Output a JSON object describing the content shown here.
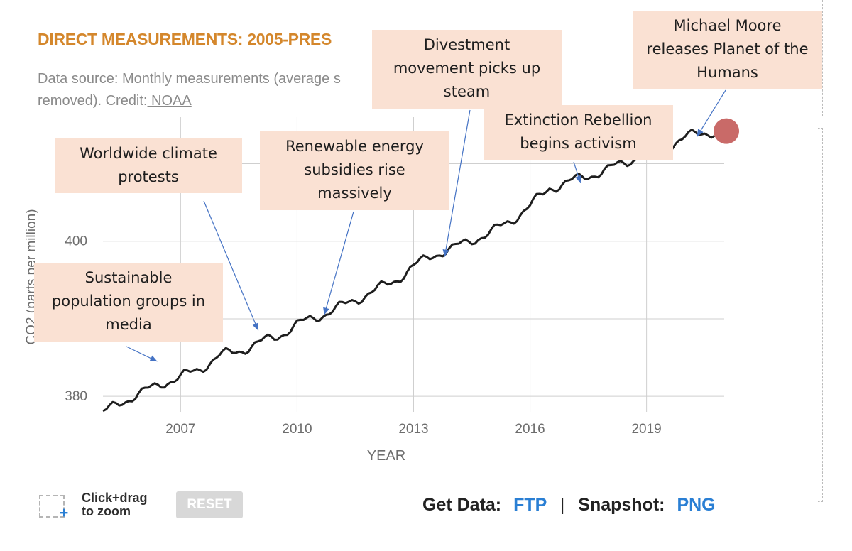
{
  "header": {
    "title": "DIRECT MEASUREMENTS: 2005-PRES",
    "subtitle_line1": "Data source: Monthly measurements (average s",
    "subtitle_line2_prefix": "removed). Credit:",
    "credit_link": " NOAA"
  },
  "chart_data": {
    "type": "line",
    "xlabel": "YEAR",
    "ylabel": "CO2 (parts per million)",
    "x_ticks": [
      "2007",
      "2010",
      "2013",
      "2016",
      "2019"
    ],
    "y_ticks": [
      "380",
      "400"
    ],
    "xlim": [
      2005,
      2021
    ],
    "ylim": [
      378,
      416
    ],
    "grid": true,
    "line_color": "#1e1e1e",
    "marker_color": "#c0504d",
    "series": [
      {
        "x": [
          2005.0,
          2005.5,
          2006.0,
          2006.5,
          2007.0,
          2007.5,
          2008.0,
          2008.5,
          2009.0,
          2009.5,
          2010.0,
          2010.5,
          2011.0,
          2011.5,
          2012.0,
          2012.5,
          2013.0,
          2013.5,
          2014.0,
          2014.5,
          2015.0,
          2015.5,
          2016.0,
          2016.5,
          2017.0,
          2017.5,
          2018.0,
          2018.5,
          2019.0,
          2019.5,
          2020.0,
          2020.5,
          2020.8
        ],
        "y": [
          377.8,
          379.4,
          380.4,
          381.7,
          382.4,
          383.6,
          385.2,
          385.9,
          386.8,
          387.8,
          389.2,
          390.3,
          391.2,
          392.5,
          393.6,
          394.9,
          396.7,
          398.3,
          399.0,
          400.2,
          401.1,
          402.7,
          404.5,
          406.9,
          407.6,
          408.5,
          409.2,
          410.3,
          411.5,
          412.2,
          413.4,
          414.0,
          414.2
        ]
      }
    ],
    "latest_x": 2020.8,
    "latest_y": 414.2
  },
  "callouts": [
    {
      "name": "callout-sustainable-population",
      "text_lines": [
        "Sustainable",
        "population groups in",
        "media"
      ],
      "target": [
        2006.4,
        384.5
      ]
    },
    {
      "name": "callout-worldwide-protests",
      "text_lines": [
        "Worldwide climate",
        "protests"
      ],
      "target": [
        2009.0,
        388.5
      ]
    },
    {
      "name": "callout-renewable-subsidies",
      "text_lines": [
        "Renewable energy",
        "subsidies rise",
        "massively"
      ],
      "target": [
        2010.7,
        390.5
      ]
    },
    {
      "name": "callout-divestment",
      "text_lines": [
        "Divestment",
        "movement picks up",
        "steam"
      ],
      "target": [
        2013.8,
        398.0
      ]
    },
    {
      "name": "callout-extinction-rebellion",
      "text_lines": [
        "Extinction Rebellion",
        "begins activism"
      ],
      "target": [
        2017.3,
        407.5
      ]
    },
    {
      "name": "callout-planet-of-humans",
      "text_lines": [
        "Michael Moore",
        "releases Planet of the",
        "Humans"
      ],
      "target": [
        2020.3,
        413.5
      ]
    }
  ],
  "arrow_color": "#4472c4",
  "toolbar": {
    "zoom_line1": "Click+drag",
    "zoom_line2": "to zoom",
    "reset_label": "RESET",
    "get_data_label": "Get Data:",
    "ftp_label": "FTP",
    "separator": "|",
    "snapshot_label": "Snapshot:",
    "png_label": "PNG"
  }
}
